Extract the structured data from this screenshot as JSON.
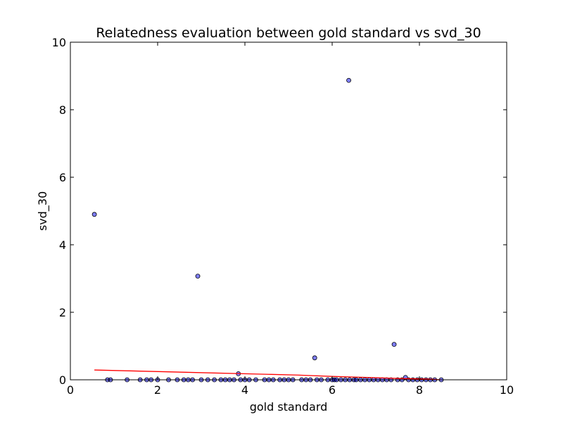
{
  "chart_data": {
    "type": "scatter",
    "title": "Relatedness evaluation between gold standard vs svd_30",
    "xlabel": "gold standard",
    "ylabel": "svd_30",
    "xlim": [
      0,
      10
    ],
    "ylim": [
      0,
      10
    ],
    "xticks": [
      0,
      2,
      4,
      6,
      8,
      10
    ],
    "yticks": [
      0,
      2,
      4,
      6,
      8,
      10
    ],
    "point_color": "#0000ff",
    "fit_color": "#ff0000",
    "points": [
      [
        0.55,
        4.9
      ],
      [
        2.92,
        3.07
      ],
      [
        6.38,
        8.87
      ],
      [
        5.6,
        0.65
      ],
      [
        7.42,
        1.05
      ],
      [
        3.85,
        0.18
      ],
      [
        7.68,
        0.07
      ],
      [
        0.85,
        0.0
      ],
      [
        0.92,
        0.0
      ],
      [
        1.3,
        0.0
      ],
      [
        1.6,
        0.0
      ],
      [
        1.75,
        0.0
      ],
      [
        1.85,
        0.0
      ],
      [
        2.0,
        0.0
      ],
      [
        2.25,
        0.0
      ],
      [
        2.45,
        0.0
      ],
      [
        2.6,
        0.0
      ],
      [
        2.7,
        0.0
      ],
      [
        2.8,
        0.0
      ],
      [
        3.0,
        0.0
      ],
      [
        3.15,
        0.0
      ],
      [
        3.3,
        0.0
      ],
      [
        3.45,
        0.0
      ],
      [
        3.55,
        0.0
      ],
      [
        3.65,
        0.0
      ],
      [
        3.75,
        0.0
      ],
      [
        3.9,
        0.0
      ],
      [
        4.0,
        0.0
      ],
      [
        4.1,
        0.0
      ],
      [
        4.25,
        0.0
      ],
      [
        4.45,
        0.0
      ],
      [
        4.55,
        0.0
      ],
      [
        4.65,
        0.0
      ],
      [
        4.8,
        0.0
      ],
      [
        4.9,
        0.0
      ],
      [
        5.0,
        0.0
      ],
      [
        5.1,
        0.0
      ],
      [
        5.3,
        0.0
      ],
      [
        5.4,
        0.0
      ],
      [
        5.5,
        0.0
      ],
      [
        5.65,
        0.0
      ],
      [
        5.75,
        0.0
      ],
      [
        5.9,
        0.0
      ],
      [
        6.0,
        0.0
      ],
      [
        6.05,
        0.0
      ],
      [
        6.1,
        0.0
      ],
      [
        6.2,
        0.0
      ],
      [
        6.3,
        0.0
      ],
      [
        6.4,
        0.0
      ],
      [
        6.5,
        0.0
      ],
      [
        6.55,
        0.0
      ],
      [
        6.65,
        0.0
      ],
      [
        6.75,
        0.0
      ],
      [
        6.85,
        0.0
      ],
      [
        6.95,
        0.0
      ],
      [
        7.05,
        0.0
      ],
      [
        7.15,
        0.0
      ],
      [
        7.25,
        0.0
      ],
      [
        7.35,
        0.0
      ],
      [
        7.5,
        0.0
      ],
      [
        7.6,
        0.0
      ],
      [
        7.75,
        0.0
      ],
      [
        7.85,
        0.0
      ],
      [
        7.95,
        0.0
      ],
      [
        8.05,
        0.0
      ],
      [
        8.15,
        0.0
      ],
      [
        8.25,
        0.0
      ],
      [
        8.35,
        0.0
      ],
      [
        8.5,
        0.0
      ]
    ],
    "fit_line": [
      [
        0.55,
        0.29
      ],
      [
        4.6,
        0.16
      ],
      [
        5.2,
        0.14
      ],
      [
        6.0,
        0.1
      ],
      [
        6.8,
        0.07
      ],
      [
        7.5,
        0.04
      ],
      [
        8.2,
        0.02
      ],
      [
        8.5,
        0.0
      ]
    ]
  }
}
